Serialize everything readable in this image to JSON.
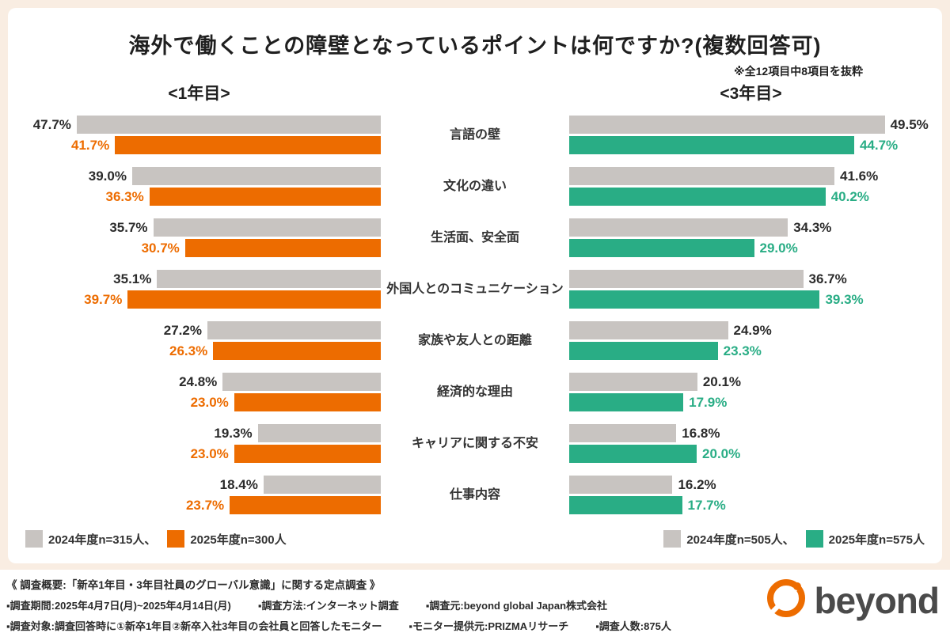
{
  "title": "海外で働くことの障壁となっているポイントは何ですか?(複数回答可)",
  "note": "※全12項目中8項目を抜粋",
  "headers": {
    "left": "<1年目>",
    "right": "<3年目>"
  },
  "colors": {
    "gray": "#C8C4C1",
    "orange": "#ED6C00",
    "green": "#29AD85",
    "background": "#F9EDE2",
    "text": "#2b2b2b"
  },
  "legend": {
    "left": [
      {
        "label": "2024年度n=315人、",
        "color": "#C8C4C1"
      },
      {
        "label": "2025年度n=300人",
        "color": "#ED6C00"
      }
    ],
    "right": [
      {
        "label": "2024年度n=505人、",
        "color": "#C8C4C1"
      },
      {
        "label": "2025年度n=575人",
        "color": "#29AD85"
      }
    ]
  },
  "footer": {
    "line1": "《 調査概要:「新卒1年目・3年目社員のグローバル意識」に関する定点調査 》",
    "line2_items": [
      "▪調査期間:2025年4月7日(月)~2025年4月14日(月)",
      "▪調査方法:インターネット調査",
      "▪調査元:beyond global Japan株式会社"
    ],
    "line3_items": [
      "▪調査対象:調査回答時に①新卒1年目②新卒入社3年目の会社員と回答したモニター",
      "▪モニター提供元:PRIZMAリサーチ",
      "▪調査人数:875人"
    ],
    "logo_text": "beyond"
  },
  "chart_data": {
    "type": "bar",
    "orientation": "horizontal",
    "title": "海外で働くことの障壁となっているポイントは何ですか?(複数回答可)",
    "note": "※全12項目中8項目を抜粋",
    "xmax": 57,
    "categories": [
      "言語の壁",
      "文化の違い",
      "生活面、安全面",
      "外国人とのコミュニケーション",
      "家族や友人との距離",
      "経済的な理由",
      "キャリアに関する不安",
      "仕事内容"
    ],
    "panels": [
      {
        "label": "<1年目>",
        "direction": "left",
        "series": [
          {
            "name": "2024年度n=315人",
            "color": "#C8C4C1",
            "value_color": "#2b2b2b",
            "values": [
              47.7,
              39.0,
              35.7,
              35.1,
              27.2,
              24.8,
              19.3,
              18.4
            ]
          },
          {
            "name": "2025年度n=300人",
            "color": "#ED6C00",
            "value_color": "#ED6C00",
            "values": [
              41.7,
              36.3,
              30.7,
              39.7,
              26.3,
              23.0,
              23.0,
              23.7
            ]
          }
        ]
      },
      {
        "label": "<3年目>",
        "direction": "right",
        "series": [
          {
            "name": "2024年度n=505人",
            "color": "#C8C4C1",
            "value_color": "#2b2b2b",
            "values": [
              49.5,
              41.6,
              34.3,
              36.7,
              24.9,
              20.1,
              16.8,
              16.2
            ]
          },
          {
            "name": "2025年度n=575人",
            "color": "#29AD85",
            "value_color": "#29AD85",
            "values": [
              44.7,
              40.2,
              29.0,
              39.3,
              23.3,
              17.9,
              20.0,
              17.7
            ]
          }
        ]
      }
    ]
  }
}
